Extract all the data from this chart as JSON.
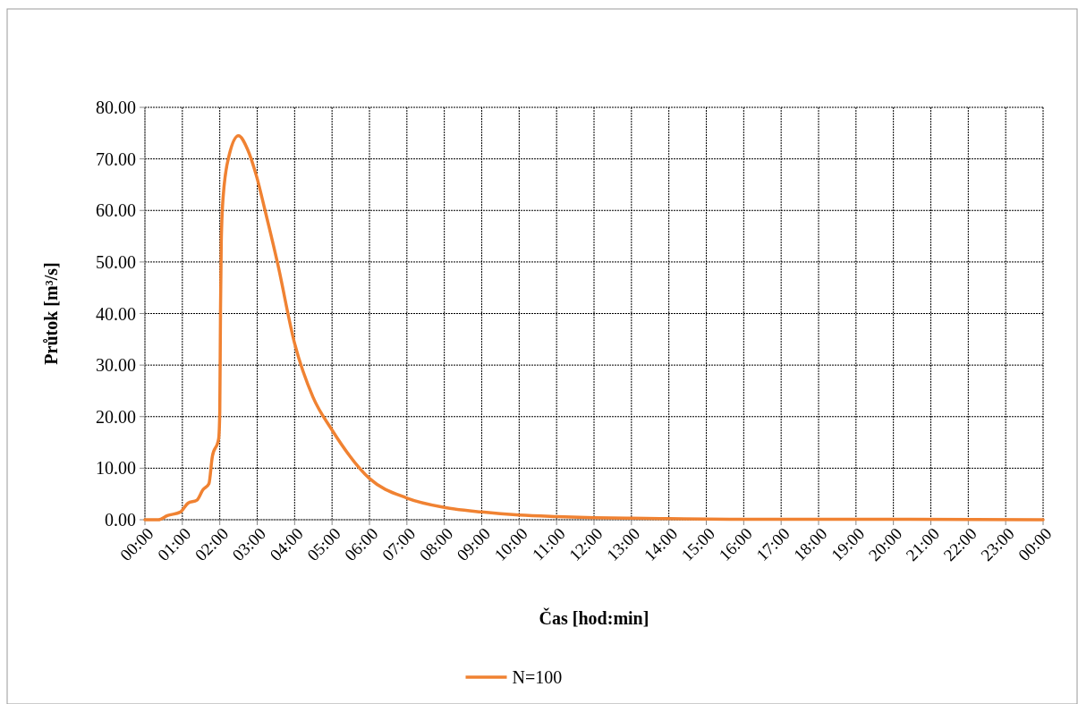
{
  "chart_data": {
    "type": "line",
    "xlabel": "Čas [hod:min]",
    "ylabel": "Průtok [m³/s]",
    "xlim": [
      0,
      24
    ],
    "ylim": [
      0,
      80
    ],
    "xticks": [
      {
        "value": 0,
        "label": "00:00"
      },
      {
        "value": 1,
        "label": "01:00"
      },
      {
        "value": 2,
        "label": "02:00"
      },
      {
        "value": 3,
        "label": "03:00"
      },
      {
        "value": 4,
        "label": "04:00"
      },
      {
        "value": 5,
        "label": "05:00"
      },
      {
        "value": 6,
        "label": "06:00"
      },
      {
        "value": 7,
        "label": "07:00"
      },
      {
        "value": 8,
        "label": "08:00"
      },
      {
        "value": 9,
        "label": "09:00"
      },
      {
        "value": 10,
        "label": "10:00"
      },
      {
        "value": 11,
        "label": "11:00"
      },
      {
        "value": 12,
        "label": "12:00"
      },
      {
        "value": 13,
        "label": "13:00"
      },
      {
        "value": 14,
        "label": "14:00"
      },
      {
        "value": 15,
        "label": "15:00"
      },
      {
        "value": 16,
        "label": "16:00"
      },
      {
        "value": 17,
        "label": "17:00"
      },
      {
        "value": 18,
        "label": "18:00"
      },
      {
        "value": 19,
        "label": "19:00"
      },
      {
        "value": 20,
        "label": "20:00"
      },
      {
        "value": 21,
        "label": "21:00"
      },
      {
        "value": 22,
        "label": "22:00"
      },
      {
        "value": 23,
        "label": "23:00"
      },
      {
        "value": 24,
        "label": "00:00"
      }
    ],
    "yticks": [
      {
        "value": 0,
        "label": "0.00"
      },
      {
        "value": 10,
        "label": "10.00"
      },
      {
        "value": 20,
        "label": "20.00"
      },
      {
        "value": 30,
        "label": "30.00"
      },
      {
        "value": 40,
        "label": "40.00"
      },
      {
        "value": 50,
        "label": "50.00"
      },
      {
        "value": 60,
        "label": "60.00"
      },
      {
        "value": 70,
        "label": "70.00"
      },
      {
        "value": 80,
        "label": "80.00"
      }
    ],
    "grid": true,
    "legend": "bottom",
    "marker": "none",
    "line_style": "solid",
    "series": [
      {
        "name": "N=100",
        "color": "#f08232",
        "x": [
          0,
          0.36,
          0.6,
          0.95,
          1.15,
          1.39,
          1.55,
          1.71,
          1.8,
          1.97,
          2.0,
          2.02,
          2.04,
          2.09,
          2.25,
          2.5,
          2.74,
          2.98,
          3.22,
          3.54,
          4.0,
          4.49,
          5.0,
          6.0,
          7.0,
          8.0,
          9.0,
          10.0,
          11.0,
          12.0,
          13.0,
          14.0,
          16.0,
          20.0,
          24.0
        ],
        "values": [
          0,
          0,
          0.8,
          1.5,
          3.2,
          3.8,
          5.8,
          7.0,
          12.2,
          15.7,
          20.9,
          41,
          54,
          62.6,
          70.7,
          74.5,
          71.9,
          66.7,
          59.7,
          49.9,
          34.2,
          23.8,
          17.4,
          8.0,
          4.2,
          2.4,
          1.5,
          0.9,
          0.6,
          0.4,
          0.3,
          0.2,
          0.1,
          0.1,
          0
        ]
      }
    ]
  }
}
